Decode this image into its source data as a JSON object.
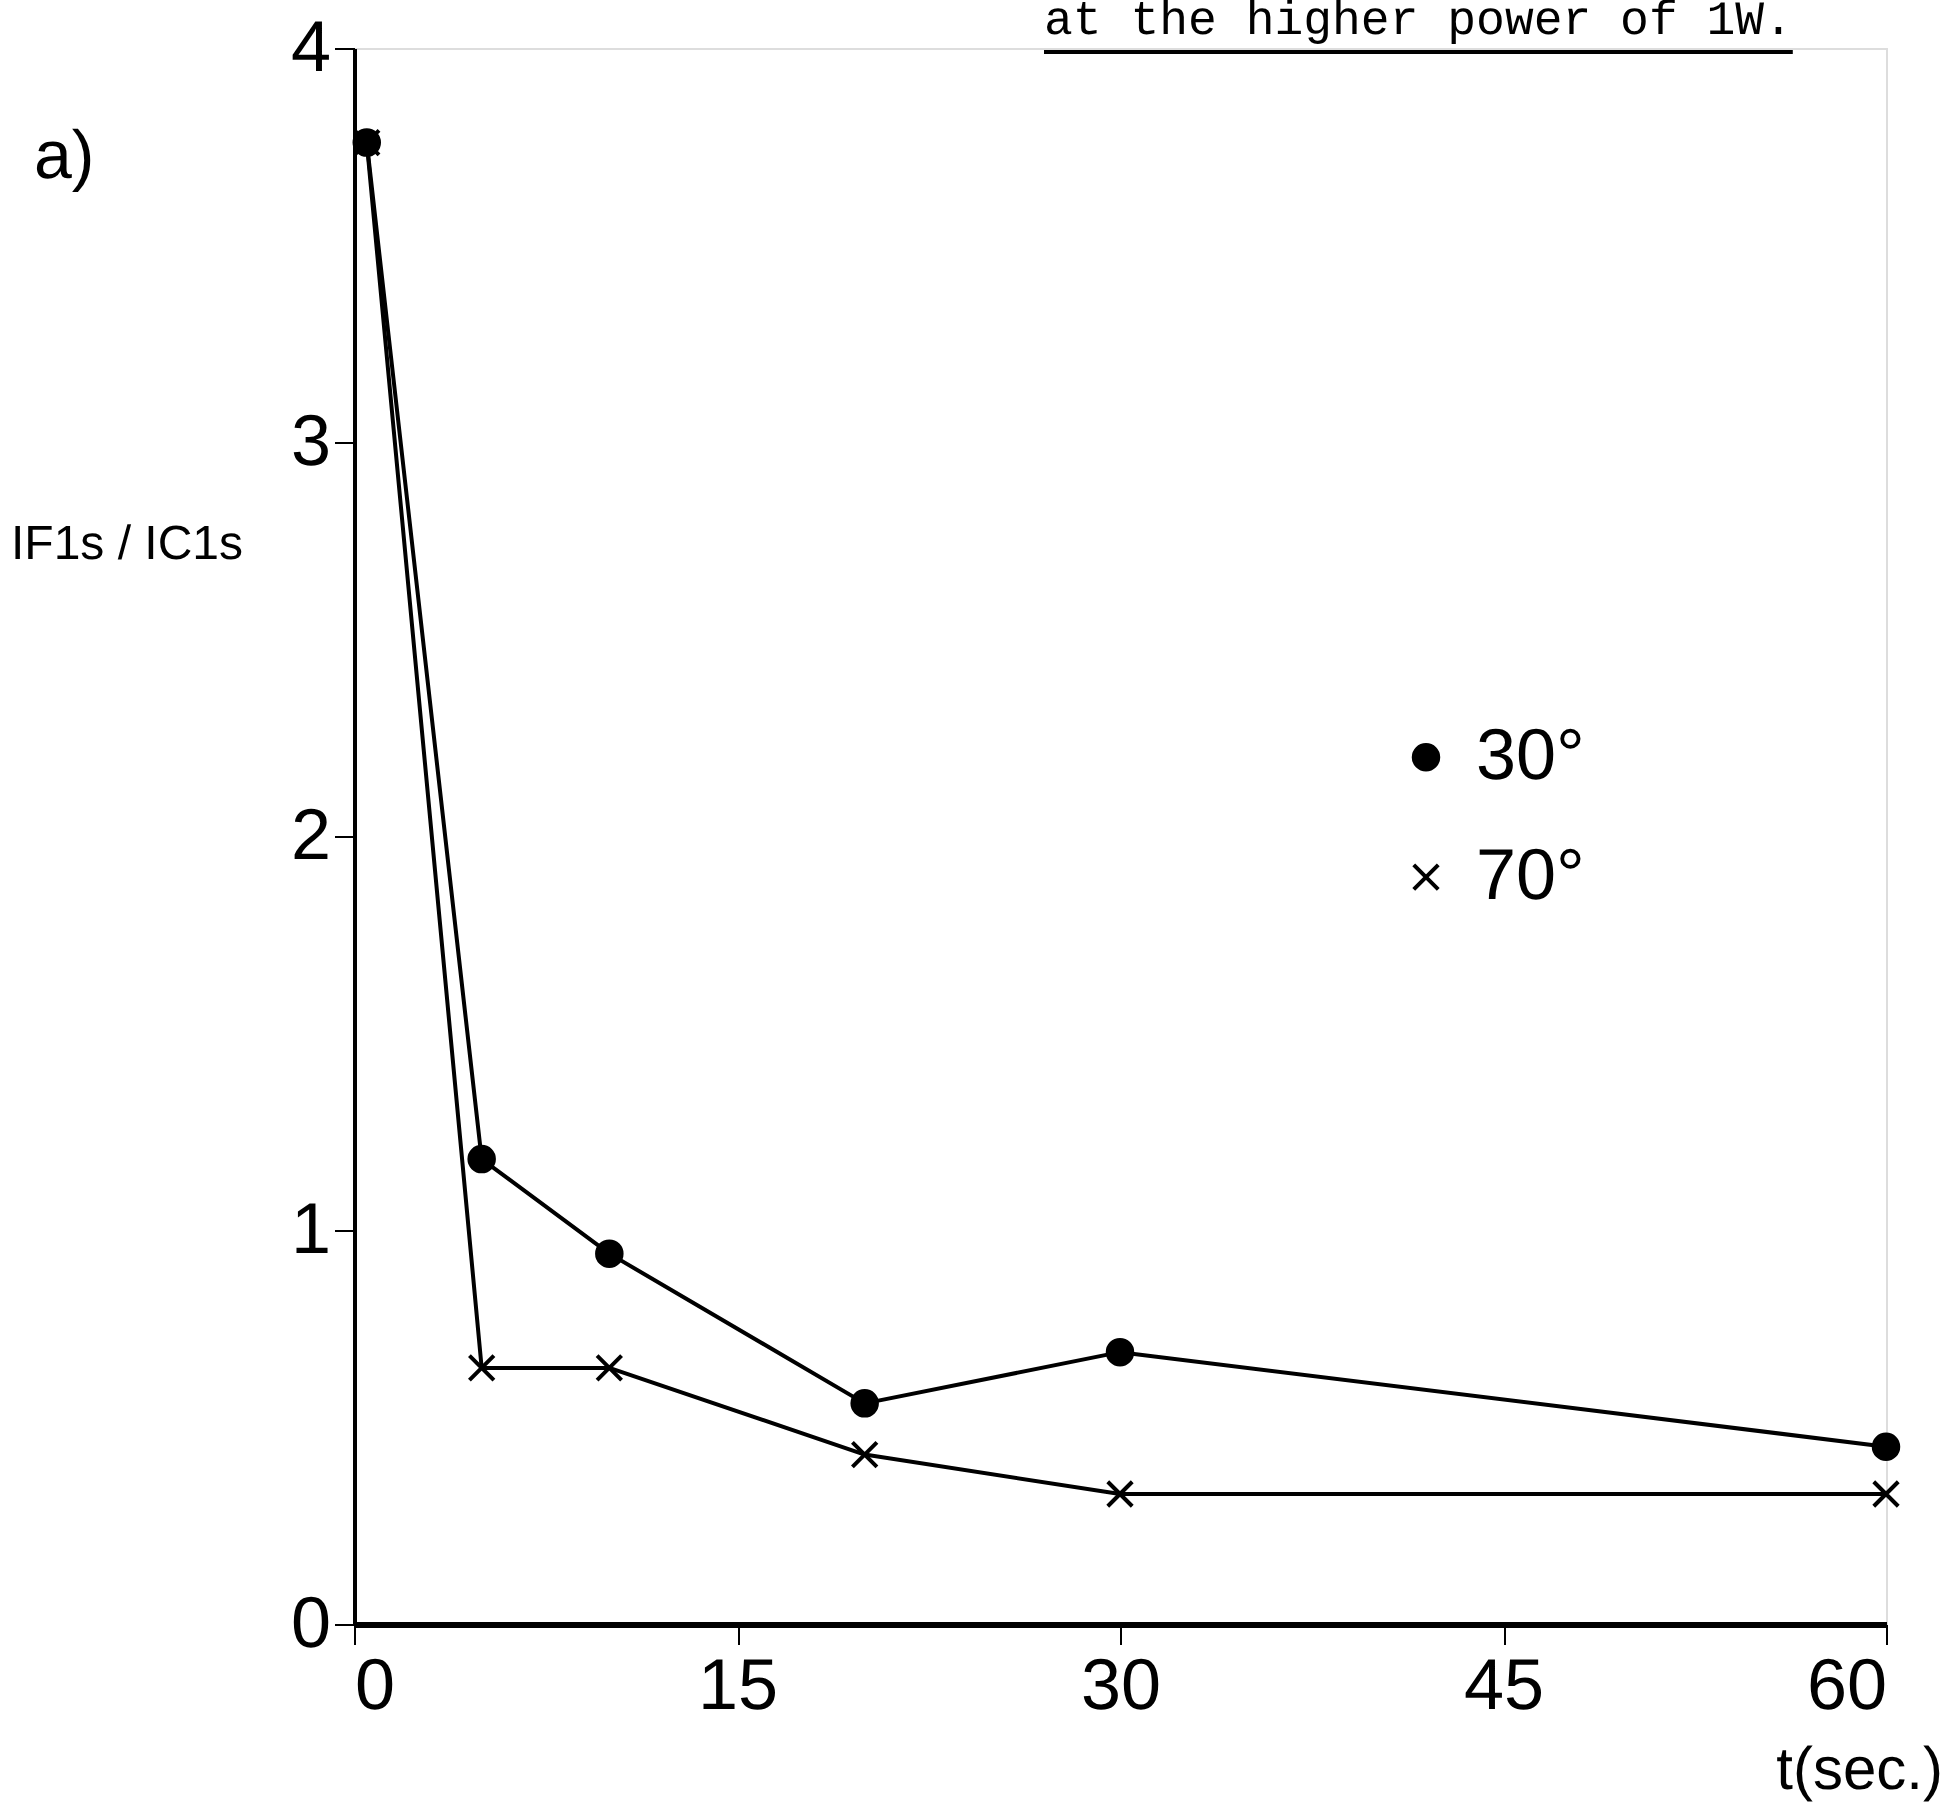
{
  "chart_data": {
    "type": "line",
    "xlabel": "t(sec.)",
    "ylabel": "IF1s / IC1s",
    "xlim": [
      0,
      60
    ],
    "xticks": [
      0,
      15,
      30,
      45,
      60
    ],
    "ylim": [
      0,
      4
    ],
    "yticks": [
      0,
      1,
      2,
      3,
      4
    ],
    "grid": false,
    "legend": "right",
    "annotations": [
      "at the higher power of 1W.",
      "a)"
    ],
    "series": [
      {
        "name": "30°",
        "color": "#000000",
        "marker": "circle",
        "x": [
          0.5,
          5,
          10,
          20,
          30,
          60
        ],
        "values": [
          3.76,
          1.18,
          0.94,
          0.56,
          0.69,
          0.45
        ]
      },
      {
        "name": "70°",
        "color": "#000000",
        "marker": "cross",
        "x": [
          0.5,
          5,
          10,
          20,
          30,
          60
        ],
        "values": [
          3.76,
          0.65,
          0.65,
          0.43,
          0.33,
          0.33
        ]
      }
    ]
  }
}
